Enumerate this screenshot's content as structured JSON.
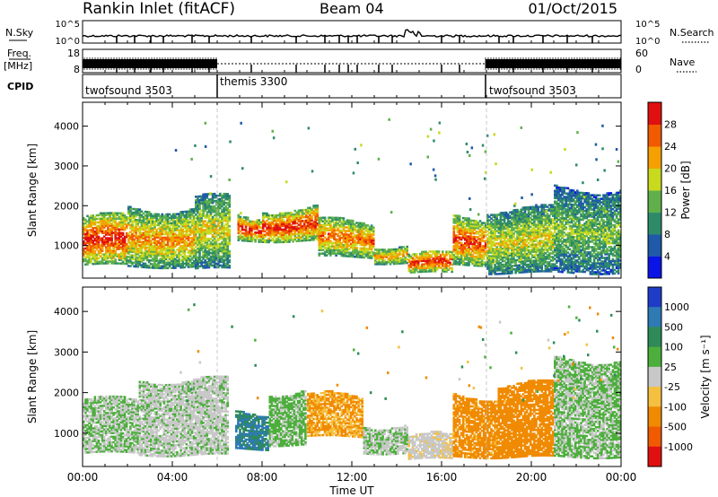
{
  "header": {
    "station": "Rankin Inlet (fitACF)",
    "beam": "Beam 04",
    "date": "01/Oct/2015"
  },
  "noise_panel": {
    "left_label": "N.Sky",
    "right_label": "N.Search",
    "left_ticks": [
      "10^5",
      "10^0"
    ],
    "right_ticks": [
      "10^5",
      "10^0"
    ]
  },
  "freq_panel": {
    "left_label": "Freq.",
    "left_unit": "[MHz]",
    "right_label": "Nave",
    "left_ticks": [
      "18",
      "8"
    ],
    "right_ticks": [
      "60",
      "0"
    ]
  },
  "cpid_panel": {
    "label": "CPID",
    "modes": [
      {
        "name": "twofsound 3503",
        "start_hour": 0,
        "end_hour": 6
      },
      {
        "name": "themis 3300",
        "start_hour": 6,
        "end_hour": 18
      },
      {
        "name": "twofsound 3503",
        "start_hour": 18,
        "end_hour": 24
      }
    ]
  },
  "chart_data": [
    {
      "type": "heatmap",
      "name": "power",
      "ylabel": "Slant Range [km]",
      "yticks": [
        "1000",
        "2000",
        "3000",
        "4000"
      ],
      "ylim": [
        180,
        4600
      ],
      "colorbar_label": "Power [dB]",
      "colorbar_ticks": [
        "4",
        "8",
        "12",
        "16",
        "20",
        "24",
        "28"
      ],
      "colorbar_colors": [
        "#0a14e6",
        "#1e5aa8",
        "#2e8b6a",
        "#5fb04a",
        "#c8d91e",
        "#f5a000",
        "#f05a00",
        "#e01010"
      ],
      "bands": [
        {
          "start_hour": 0.0,
          "end_hour": 2.0,
          "y_lo": 500,
          "y_hi": 1700,
          "peak": 28
        },
        {
          "start_hour": 2.0,
          "end_hour": 5.0,
          "y_lo": 450,
          "y_hi": 1900,
          "peak": 22
        },
        {
          "start_hour": 5.0,
          "end_hour": 6.6,
          "y_lo": 400,
          "y_hi": 2200,
          "peak": 18
        },
        {
          "start_hour": 6.9,
          "end_hour": 8.0,
          "y_lo": 1100,
          "y_hi": 1700,
          "peak": 28
        },
        {
          "start_hour": 8.0,
          "end_hour": 10.5,
          "y_lo": 1100,
          "y_hi": 1900,
          "peak": 28
        },
        {
          "start_hour": 10.5,
          "end_hour": 13.0,
          "y_lo": 700,
          "y_hi": 1600,
          "peak": 24
        },
        {
          "start_hour": 13.0,
          "end_hour": 14.5,
          "y_lo": 550,
          "y_hi": 1000,
          "peak": 22
        },
        {
          "start_hour": 14.5,
          "end_hour": 16.5,
          "y_lo": 300,
          "y_hi": 750,
          "peak": 28
        },
        {
          "start_hour": 16.5,
          "end_hour": 18.0,
          "y_lo": 500,
          "y_hi": 1700,
          "peak": 26
        },
        {
          "start_hour": 18.0,
          "end_hour": 21.0,
          "y_lo": 300,
          "y_hi": 1900,
          "peak": 18
        },
        {
          "start_hour": 21.0,
          "end_hour": 24.0,
          "y_lo": 300,
          "y_hi": 2400,
          "peak": 14
        }
      ]
    },
    {
      "type": "heatmap",
      "name": "velocity",
      "ylabel": "Slant Range [km]",
      "yticks": [
        "1000",
        "2000",
        "3000",
        "4000"
      ],
      "ylim": [
        180,
        4600
      ],
      "colorbar_label": "Velocity [m s⁻¹]",
      "colorbar_ticks": [
        "1000",
        "500",
        "100",
        "25",
        "-25",
        "-100",
        "-500",
        "-1000"
      ],
      "colorbar_colors": [
        "#1e3cc8",
        "#2e7ab4",
        "#2e8b57",
        "#4caf3c",
        "#c8c8c8",
        "#f5c040",
        "#f08a00",
        "#f05a00",
        "#e01010"
      ],
      "bands": [
        {
          "start_hour": 0.0,
          "end_hour": 2.5,
          "y_lo": 500,
          "y_hi": 1800,
          "value": 25
        },
        {
          "start_hour": 2.5,
          "end_hour": 6.5,
          "y_lo": 450,
          "y_hi": 2300,
          "value": 10
        },
        {
          "start_hour": 6.8,
          "end_hour": 8.3,
          "y_lo": 600,
          "y_hi": 1500,
          "value": 500
        },
        {
          "start_hour": 8.3,
          "end_hour": 10.0,
          "y_lo": 700,
          "y_hi": 2000,
          "value": 40
        },
        {
          "start_hour": 10.0,
          "end_hour": 12.5,
          "y_lo": 900,
          "y_hi": 1900,
          "value": -100
        },
        {
          "start_hour": 12.5,
          "end_hour": 14.5,
          "y_lo": 500,
          "y_hi": 1200,
          "value": 20
        },
        {
          "start_hour": 14.5,
          "end_hour": 16.5,
          "y_lo": 350,
          "y_hi": 900,
          "value": -10
        },
        {
          "start_hour": 16.5,
          "end_hour": 18.5,
          "y_lo": 400,
          "y_hi": 1900,
          "value": -150
        },
        {
          "start_hour": 18.5,
          "end_hour": 21.0,
          "y_lo": 400,
          "y_hi": 2200,
          "value": -300
        },
        {
          "start_hour": 21.0,
          "end_hour": 24.0,
          "y_lo": 400,
          "y_hi": 2800,
          "value": 30
        }
      ]
    }
  ],
  "xaxis": {
    "label": "Time UT",
    "ticks": [
      "00:00",
      "04:00",
      "08:00",
      "12:00",
      "16:00",
      "20:00",
      "00:00"
    ],
    "range_hours": [
      0,
      24
    ]
  }
}
